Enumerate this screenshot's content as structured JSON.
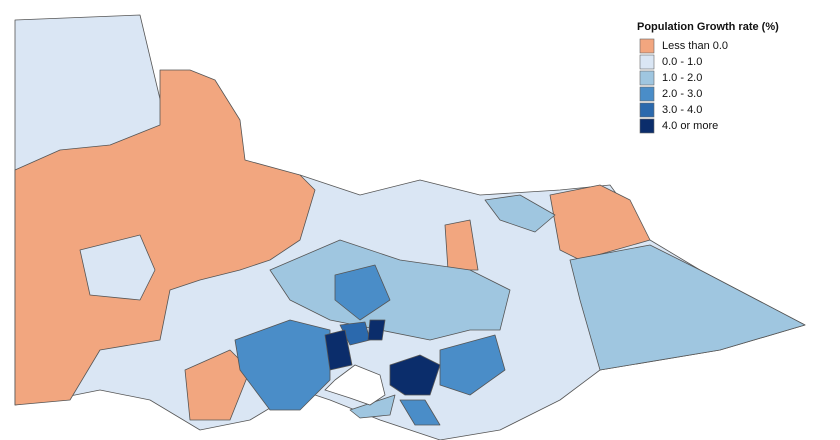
{
  "legend": {
    "title": "Population Growth rate (%)",
    "items": [
      {
        "label": "Less than 0.0",
        "color": "#f2a67f"
      },
      {
        "label": "0.0 - 1.0",
        "color": "#dae6f4"
      },
      {
        "label": "1.0 - 2.0",
        "color": "#9fc6e0"
      },
      {
        "label": "2.0 - 3.0",
        "color": "#4a8dc8"
      },
      {
        "label": "3.0 - 4.0",
        "color": "#2b69ad"
      },
      {
        "label": "4.0 or more",
        "color": "#0b2d6b"
      }
    ]
  }
}
